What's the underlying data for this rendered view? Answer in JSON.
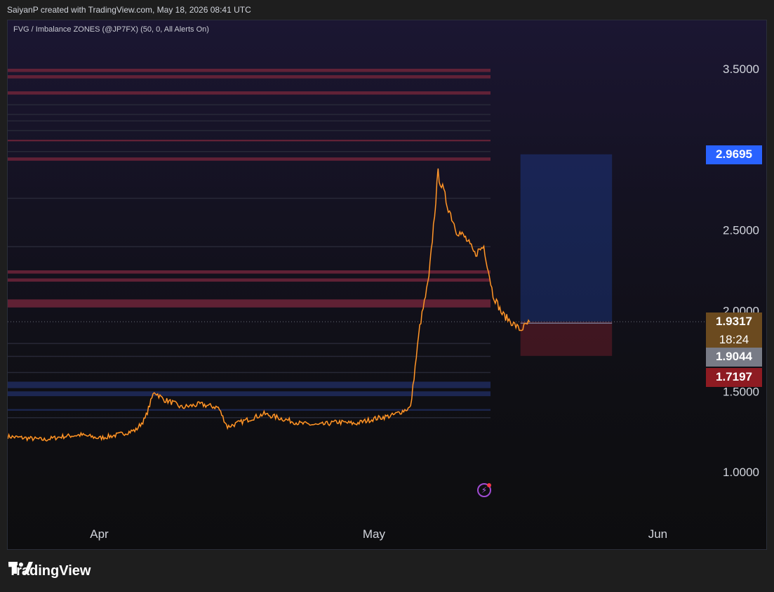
{
  "header": {
    "attribution": "SaiyanP created with TradingView.com, May 18, 2026 08:41 UTC"
  },
  "indicator": {
    "label": "FVG / Imbalance ZONES (@JP7FX) (50, 0, All Alerts On)"
  },
  "colors": {
    "candle": "#f57c00",
    "candle_light": "#ffe0c0",
    "zone_red": "#6e2439",
    "zone_blue": "#1e2a5c",
    "position_blue": "#2962ff",
    "position_red": "#7b1e2c",
    "tag_blue": "#2962ff",
    "tag_brown": "#6b4a1f",
    "tag_gray": "#787b86",
    "tag_red": "#8e1b22"
  },
  "chart_data": {
    "type": "line",
    "ylim": [
      0.7,
      3.8
    ],
    "y_ticks": [
      "3.5000",
      "2.5000",
      "2.0000",
      "1.5000",
      "1.0000"
    ],
    "y_tick_values": [
      3.5,
      2.5,
      2.0,
      1.5,
      1.0
    ],
    "x_ticks": [
      "Apr",
      "May",
      "Jun"
    ],
    "x_tick_dates": [
      "2026-04-01",
      "2026-05-01",
      "2026-06-01"
    ],
    "x_range": [
      "2026-03-22",
      "2026-06-13"
    ],
    "series": [
      {
        "x": [
          "2026-03-22",
          "2026-03-24",
          "2026-03-26",
          "2026-03-28",
          "2026-03-30",
          "2026-04-01",
          "2026-04-03",
          "2026-04-05",
          "2026-04-06",
          "2026-04-07",
          "2026-04-08",
          "2026-04-09",
          "2026-04-10",
          "2026-04-12",
          "2026-04-14",
          "2026-04-15",
          "2026-04-17",
          "2026-04-19",
          "2026-04-21",
          "2026-04-23",
          "2026-04-25",
          "2026-04-27",
          "2026-04-29",
          "2026-05-01",
          "2026-05-03",
          "2026-05-05",
          "2026-05-06",
          "2026-05-07",
          "2026-05-08",
          "2026-05-09",
          "2026-05-10",
          "2026-05-11",
          "2026-05-12",
          "2026-05-13",
          "2026-05-14",
          "2026-05-15",
          "2026-05-16",
          "2026-05-17",
          "2026-05-18"
        ],
        "values": [
          1.22,
          1.21,
          1.2,
          1.22,
          1.23,
          1.21,
          1.23,
          1.26,
          1.33,
          1.5,
          1.45,
          1.43,
          1.4,
          1.42,
          1.4,
          1.28,
          1.32,
          1.36,
          1.33,
          1.3,
          1.29,
          1.31,
          1.3,
          1.33,
          1.35,
          1.4,
          1.9,
          2.2,
          2.85,
          2.66,
          2.5,
          2.45,
          2.35,
          2.4,
          2.1,
          1.98,
          1.93,
          1.88,
          1.93
        ]
      }
    ],
    "zones": [
      {
        "y1": 3.48,
        "y2": 3.5,
        "kind": "red"
      },
      {
        "y1": 3.44,
        "y2": 3.46,
        "kind": "red"
      },
      {
        "y1": 3.34,
        "y2": 3.36,
        "kind": "red"
      },
      {
        "y1": 3.05,
        "y2": 3.06,
        "kind": "red"
      },
      {
        "y1": 2.93,
        "y2": 2.95,
        "kind": "red"
      },
      {
        "y1": 2.23,
        "y2": 2.25,
        "kind": "red"
      },
      {
        "y1": 2.18,
        "y2": 2.2,
        "kind": "red"
      },
      {
        "y1": 2.02,
        "y2": 2.07,
        "kind": "red"
      },
      {
        "y1": 1.52,
        "y2": 1.56,
        "kind": "blue"
      },
      {
        "y1": 1.47,
        "y2": 1.5,
        "kind": "blue"
      },
      {
        "y1": 1.38,
        "y2": 1.39,
        "kind": "blue"
      }
    ],
    "position": {
      "target": 2.9695,
      "entry": 1.9317,
      "stop": 1.7197,
      "start": "2026-05-17",
      "end": "2026-05-27"
    },
    "price_tags": [
      {
        "label": "2.9695",
        "value": 2.9695,
        "kind": "blue"
      },
      {
        "label": "1.9317",
        "sub": "18:24",
        "value": 1.9317,
        "kind": "brown"
      },
      {
        "label": "1.9044",
        "value": 1.9044,
        "kind": "gray"
      },
      {
        "label": "1.7197",
        "value": 1.7197,
        "kind": "red"
      }
    ]
  },
  "footer": {
    "brand": "TradingView"
  }
}
